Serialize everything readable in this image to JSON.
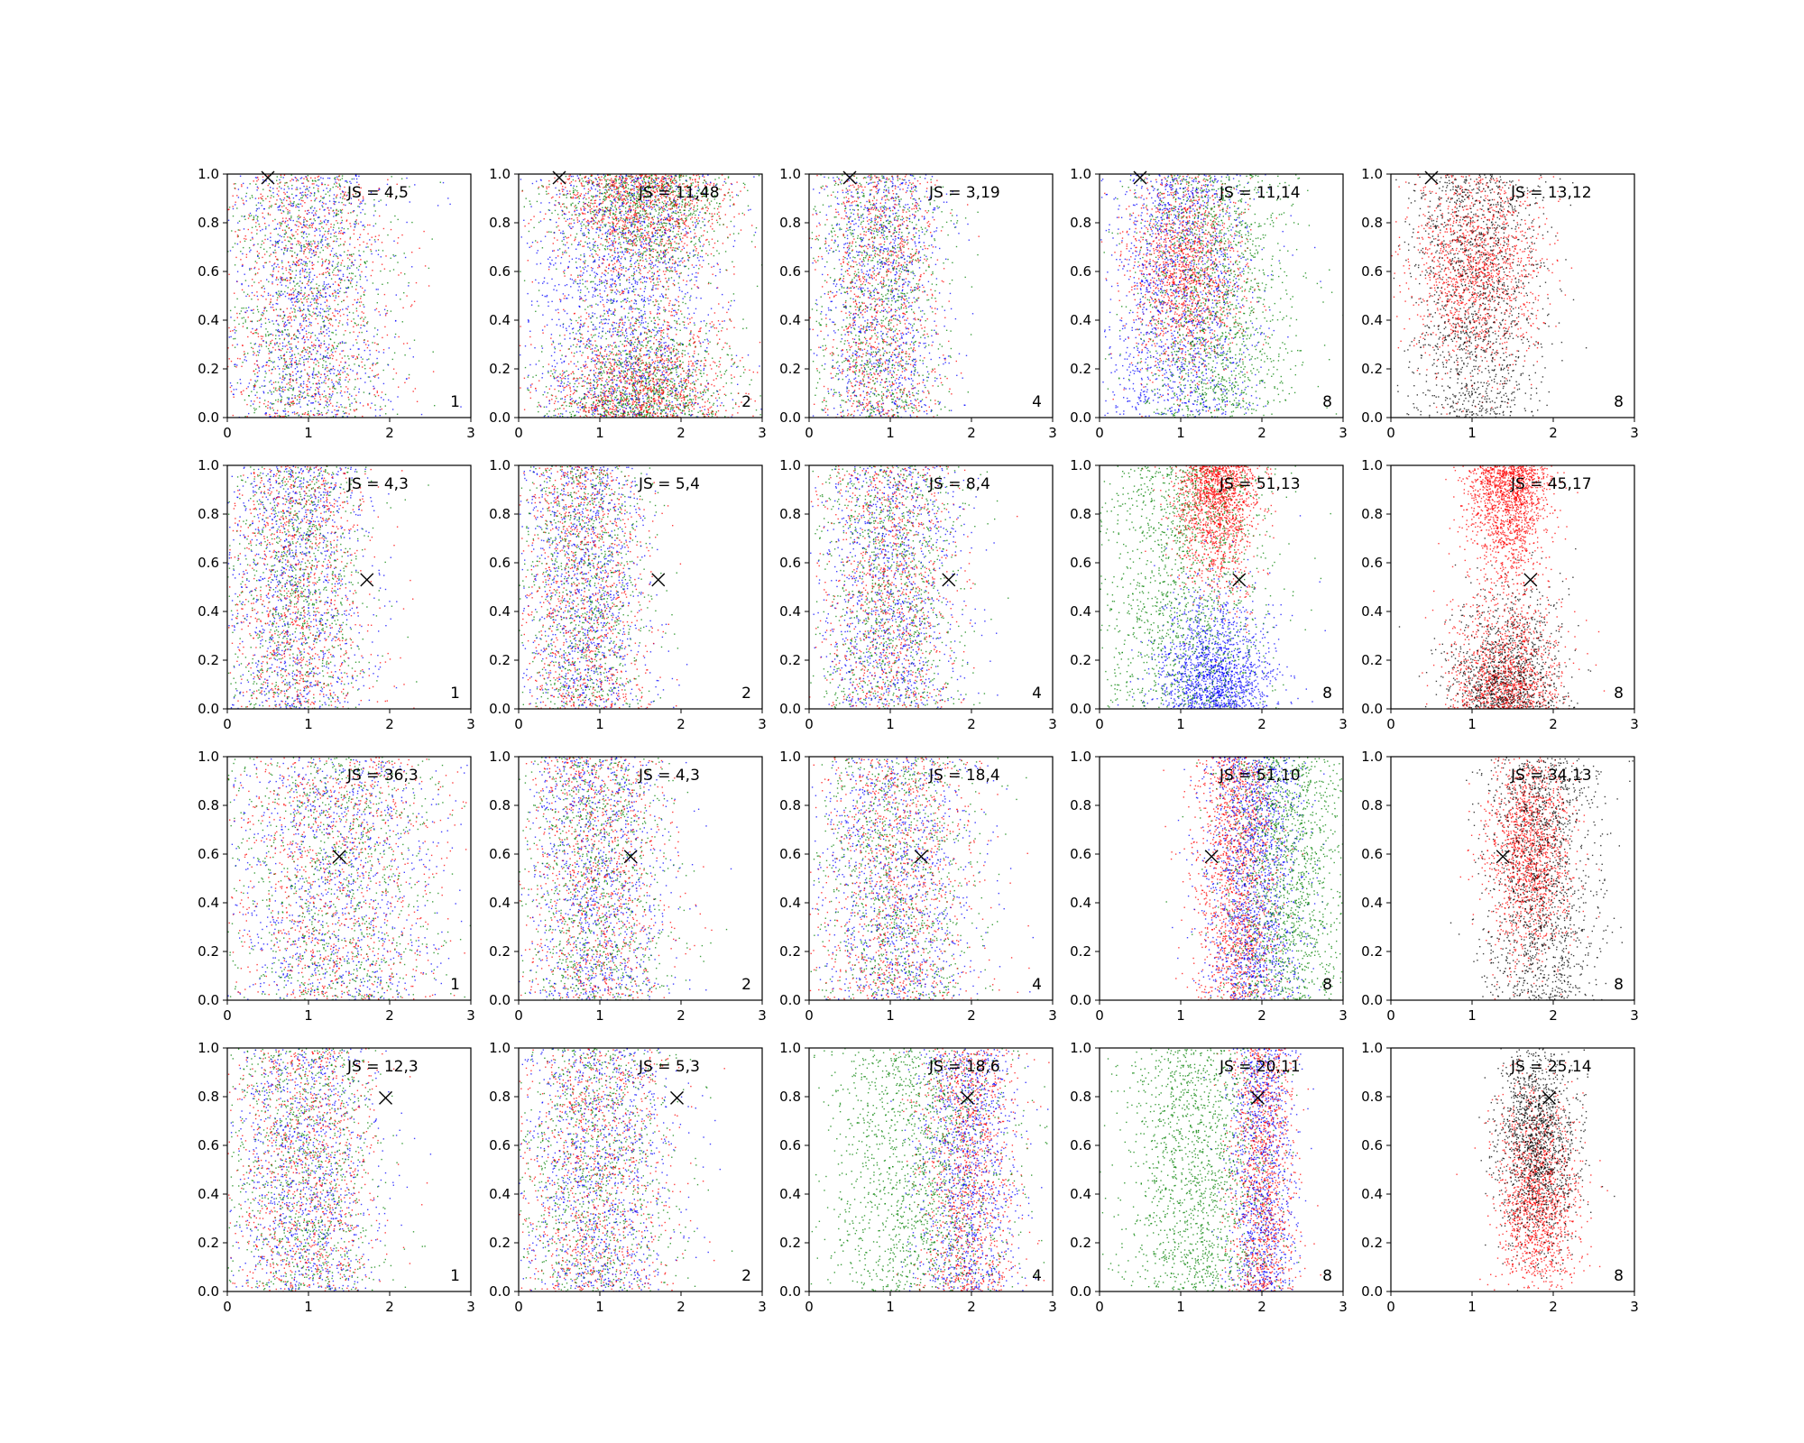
{
  "chart_data": {
    "type": "scatter",
    "layout": {
      "rows": 4,
      "cols": 5
    },
    "xlim": [
      0,
      3
    ],
    "ylim": [
      0,
      1
    ],
    "xticks": [
      "0",
      "1",
      "2",
      "3"
    ],
    "yticks": [
      "0.0",
      "0.2",
      "0.4",
      "0.6",
      "0.8",
      "1.0"
    ],
    "grid": false,
    "colors": {
      "blue": "#0000ff",
      "red": "#ff0000",
      "green": "#008000",
      "black": "#000000"
    },
    "rows": [
      {
        "marker": {
          "x": 0.5,
          "y": 0.985
        },
        "panels": [
          {
            "js": "JS = 4,5",
            "n": "1",
            "mix": "even",
            "clouds": [
              {
                "cx": 0.95,
                "sx": 0.55,
                "y": "uniform"
              }
            ]
          },
          {
            "js": "JS = 11,48",
            "n": "2",
            "mix": "even",
            "clouds": [
              {
                "cx": 1.5,
                "sx": 0.55,
                "y": "top",
                "colors": [
                  "red",
                  "green"
                ]
              },
              {
                "cx": 1.5,
                "sx": 0.55,
                "y": "bottom",
                "colors": [
                  "red",
                  "green"
                ]
              },
              {
                "cx": 1.3,
                "sx": 0.6,
                "y": "uniform",
                "colors": [
                  "blue"
                ]
              }
            ]
          },
          {
            "js": "JS = 3,19",
            "n": "4",
            "mix": "even",
            "clouds": [
              {
                "cx": 0.85,
                "sx": 0.4,
                "y": "uniform"
              }
            ]
          },
          {
            "js": "JS = 11,14",
            "n": "8",
            "mix": "rgb",
            "clouds": [
              {
                "cx": 1.05,
                "sx": 0.35,
                "y": "upper",
                "colors": [
                  "red"
                ]
              },
              {
                "cx": 1.0,
                "sx": 0.45,
                "y": "uniform",
                "colors": [
                  "blue"
                ]
              },
              {
                "cx": 1.4,
                "sx": 0.5,
                "y": "uniform",
                "colors": [
                  "green"
                ]
              }
            ]
          },
          {
            "js": "JS = 13,12",
            "n": "8",
            "mix": "redblack",
            "clouds": [
              {
                "cx": 1.05,
                "sx": 0.4,
                "y": "upper",
                "colors": [
                  "red"
                ]
              },
              {
                "cx": 1.05,
                "sx": 0.4,
                "y": "uniform",
                "colors": [
                  "black"
                ]
              }
            ]
          }
        ]
      },
      {
        "marker": {
          "x": 1.72,
          "y": 0.53
        },
        "panels": [
          {
            "js": "JS = 4,3",
            "n": "1",
            "mix": "even",
            "clouds": [
              {
                "cx": 0.85,
                "sx": 0.45,
                "y": "uniform"
              }
            ]
          },
          {
            "js": "JS = 5,4",
            "n": "2",
            "mix": "even",
            "clouds": [
              {
                "cx": 0.8,
                "sx": 0.4,
                "y": "uniform"
              }
            ]
          },
          {
            "js": "JS = 8,4",
            "n": "4",
            "mix": "even",
            "clouds": [
              {
                "cx": 1.0,
                "sx": 0.45,
                "y": "uniform"
              }
            ]
          },
          {
            "js": "JS = 51,13",
            "n": "8",
            "mix": "rgb",
            "clouds": [
              {
                "cx": 1.45,
                "sx": 0.25,
                "y": "top",
                "colors": [
                  "red"
                ]
              },
              {
                "cx": 1.4,
                "sx": 0.35,
                "y": "bottom",
                "colors": [
                  "blue"
                ]
              },
              {
                "cx": 1.0,
                "sx": 0.55,
                "y": "uniform",
                "colors": [
                  "green"
                ]
              }
            ]
          },
          {
            "js": "JS = 45,17",
            "n": "8",
            "mix": "redblack",
            "clouds": [
              {
                "cx": 1.45,
                "sx": 0.25,
                "y": "top",
                "colors": [
                  "red"
                ]
              },
              {
                "cx": 1.4,
                "sx": 0.35,
                "y": "bottom",
                "colors": [
                  "red",
                  "black"
                ]
              }
            ]
          }
        ]
      },
      {
        "marker": {
          "x": 1.38,
          "y": 0.59
        },
        "panels": [
          {
            "js": "JS = 36,3",
            "n": "1",
            "mix": "even",
            "clouds": [
              {
                "cx": 1.3,
                "sx": 0.65,
                "y": "uniform"
              }
            ]
          },
          {
            "js": "JS = 4,3",
            "n": "2",
            "mix": "even",
            "clouds": [
              {
                "cx": 0.95,
                "sx": 0.45,
                "y": "uniform"
              }
            ]
          },
          {
            "js": "JS = 18,4",
            "n": "4",
            "mix": "even",
            "clouds": [
              {
                "cx": 1.05,
                "sx": 0.5,
                "y": "uniform"
              }
            ]
          },
          {
            "js": "JS = 51,10",
            "n": "8",
            "mix": "rgb",
            "clouds": [
              {
                "cx": 1.7,
                "sx": 0.25,
                "y": "uniform",
                "colors": [
                  "red"
                ]
              },
              {
                "cx": 1.9,
                "sx": 0.3,
                "y": "uniform",
                "colors": [
                  "blue"
                ]
              },
              {
                "cx": 2.3,
                "sx": 0.4,
                "y": "uniform",
                "colors": [
                  "green"
                ]
              }
            ]
          },
          {
            "js": "JS = 34,13",
            "n": "8",
            "mix": "redblack",
            "clouds": [
              {
                "cx": 1.7,
                "sx": 0.25,
                "y": "upper",
                "colors": [
                  "red"
                ]
              },
              {
                "cx": 1.85,
                "sx": 0.35,
                "y": "uniform",
                "colors": [
                  "black"
                ]
              }
            ]
          }
        ]
      },
      {
        "marker": {
          "x": 1.95,
          "y": 0.795
        },
        "panels": [
          {
            "js": "JS = 12,3",
            "n": "1",
            "mix": "even",
            "clouds": [
              {
                "cx": 0.95,
                "sx": 0.45,
                "y": "uniform"
              }
            ]
          },
          {
            "js": "JS = 5,3",
            "n": "2",
            "mix": "even",
            "clouds": [
              {
                "cx": 0.95,
                "sx": 0.5,
                "y": "uniform"
              }
            ]
          },
          {
            "js": "JS = 18,6",
            "n": "4",
            "mix": "rgb",
            "clouds": [
              {
                "cx": 1.95,
                "sx": 0.3,
                "y": "uniform",
                "colors": [
                  "red",
                  "blue"
                ]
              },
              {
                "cx": 1.3,
                "sx": 0.55,
                "y": "uniform",
                "colors": [
                  "green"
                ]
              }
            ]
          },
          {
            "js": "JS = 20,11",
            "n": "8",
            "mix": "rgb",
            "clouds": [
              {
                "cx": 2.0,
                "sx": 0.2,
                "y": "uniform",
                "colors": [
                  "red",
                  "blue"
                ]
              },
              {
                "cx": 1.2,
                "sx": 0.45,
                "y": "uniform",
                "colors": [
                  "green"
                ]
              }
            ]
          },
          {
            "js": "JS = 25,14",
            "n": "8",
            "mix": "redblack",
            "clouds": [
              {
                "cx": 1.8,
                "sx": 0.25,
                "y": "lower",
                "colors": [
                  "red"
                ]
              },
              {
                "cx": 1.8,
                "sx": 0.25,
                "y": "upper",
                "colors": [
                  "black"
                ]
              }
            ]
          }
        ]
      }
    ]
  }
}
